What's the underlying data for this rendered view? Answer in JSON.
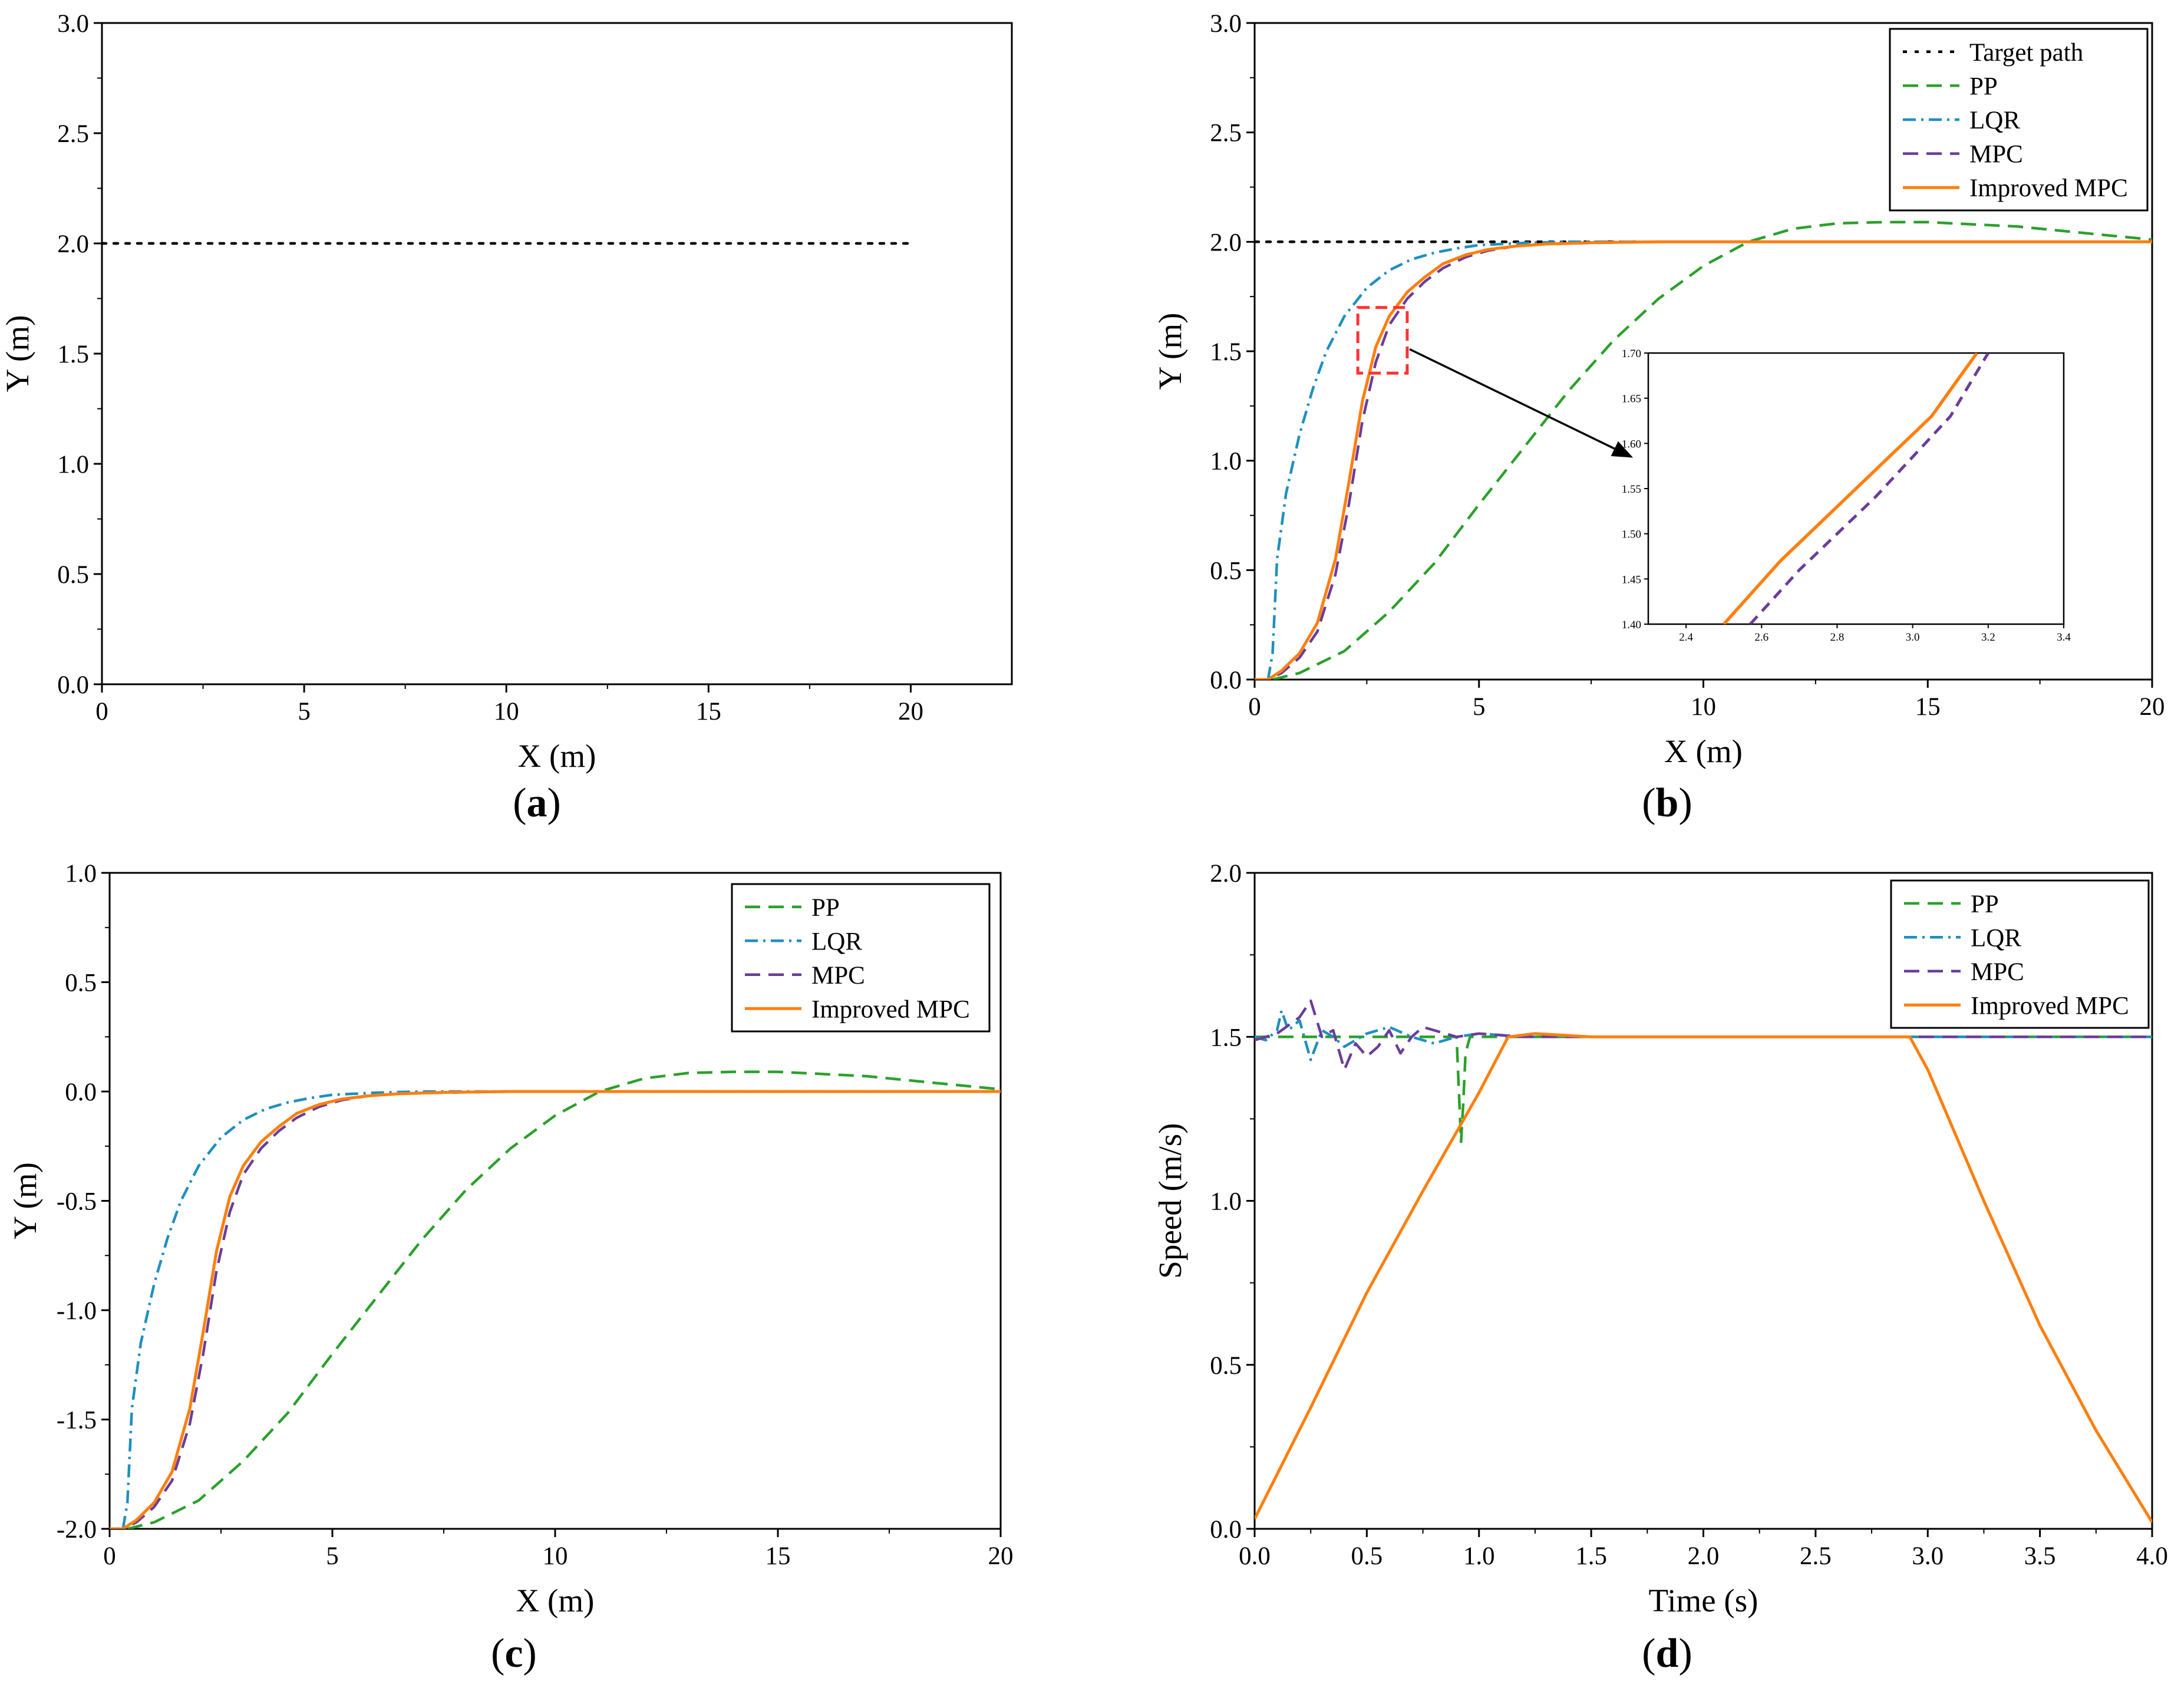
{
  "colors": {
    "target": "#000000",
    "pp": "#2ca02c",
    "lqr": "#1f8fbf",
    "mpc": "#6a3d9a",
    "improved": "#ff7f0e",
    "zoom_box": "#ff3333"
  },
  "chart_data": [
    {
      "panel": "a",
      "type": "line",
      "xlabel": "X (m)",
      "ylabel": "Y (m)",
      "xlim": [
        0,
        22.5
      ],
      "ylim": [
        0,
        3.0
      ],
      "xticks": [
        "0",
        "5",
        "10",
        "15",
        "20"
      ],
      "yticks": [
        "0.0",
        "0.5",
        "1.0",
        "1.5",
        "2.0",
        "2.5",
        "3.0"
      ],
      "series": [
        {
          "name": "Target path",
          "style": "dotted",
          "color_key": "target",
          "x": [
            0,
            20
          ],
          "y": [
            2.0,
            2.0
          ]
        }
      ],
      "caption": "a"
    },
    {
      "panel": "b",
      "type": "line",
      "xlabel": "X (m)",
      "ylabel": "Y (m)",
      "xlim": [
        0,
        20
      ],
      "ylim": [
        0,
        3.0
      ],
      "xticks": [
        "0",
        "5",
        "10",
        "15",
        "20"
      ],
      "yticks": [
        "0.0",
        "0.5",
        "1.0",
        "1.5",
        "2.0",
        "2.5",
        "3.0"
      ],
      "legend": [
        "Target path",
        "PP",
        "LQR",
        "MPC",
        "Improved MPC"
      ],
      "series": [
        {
          "name": "Target path",
          "style": "dotted",
          "color_key": "target",
          "x": [
            0,
            20
          ],
          "y": [
            2.0,
            2.0
          ]
        },
        {
          "name": "PP",
          "style": "dashed",
          "color_key": "pp",
          "x": [
            0.4,
            1,
            2,
            3,
            4,
            5,
            6,
            7,
            8,
            9,
            10,
            11,
            12,
            13,
            14,
            15,
            16,
            17,
            18,
            19,
            20
          ],
          "y": [
            0.0,
            0.03,
            0.13,
            0.31,
            0.53,
            0.8,
            1.06,
            1.32,
            1.55,
            1.74,
            1.89,
            2.0,
            2.06,
            2.085,
            2.09,
            2.09,
            2.08,
            2.07,
            2.05,
            2.03,
            2.01
          ]
        },
        {
          "name": "LQR",
          "style": "dashdot",
          "color_key": "lqr",
          "x": [
            0.3,
            0.4,
            0.5,
            0.7,
            1.0,
            1.3,
            1.6,
            2.0,
            2.5,
            3.0,
            3.5,
            4.0,
            4.5,
            5.0,
            6.0,
            7.0,
            20.0
          ],
          "y": [
            0.0,
            0.12,
            0.55,
            0.85,
            1.12,
            1.33,
            1.5,
            1.66,
            1.79,
            1.87,
            1.92,
            1.95,
            1.97,
            1.985,
            1.995,
            2.0,
            2.0
          ]
        },
        {
          "name": "MPC",
          "style": "dashed",
          "color_key": "mpc",
          "x": [
            0.0,
            0.3,
            0.6,
            1.0,
            1.4,
            1.8,
            2.1,
            2.4,
            2.7,
            3.0,
            3.4,
            3.8,
            4.2,
            4.7,
            5.2,
            5.8,
            6.5,
            7.5,
            9.0,
            20.0
          ],
          "y": [
            0.0,
            0.0,
            0.03,
            0.1,
            0.22,
            0.48,
            0.8,
            1.18,
            1.45,
            1.62,
            1.74,
            1.82,
            1.88,
            1.93,
            1.96,
            1.98,
            1.99,
            1.995,
            2.0,
            2.0
          ]
        },
        {
          "name": "Improved MPC",
          "style": "solid",
          "color_key": "improved",
          "x": [
            0.0,
            0.3,
            0.6,
            1.0,
            1.4,
            1.8,
            2.1,
            2.4,
            2.7,
            3.0,
            3.4,
            3.8,
            4.2,
            4.7,
            5.2,
            5.8,
            6.5,
            7.5,
            9.0,
            20.0
          ],
          "y": [
            0.0,
            0.0,
            0.04,
            0.12,
            0.26,
            0.55,
            0.9,
            1.27,
            1.52,
            1.66,
            1.77,
            1.84,
            1.9,
            1.94,
            1.965,
            1.98,
            1.99,
            1.996,
            2.0,
            2.0
          ]
        }
      ],
      "inset": {
        "xlim": [
          2.3,
          3.4
        ],
        "ylim": [
          1.4,
          1.7
        ],
        "xticks": [
          "2.4",
          "2.6",
          "2.8",
          "3.0",
          "3.2",
          "3.4"
        ],
        "yticks": [
          "1.40",
          "1.45",
          "1.50",
          "1.55",
          "1.60",
          "1.65",
          "1.70"
        ],
        "series": [
          {
            "name": "MPC",
            "color_key": "mpc",
            "x": [
              2.57,
              2.7,
              2.9,
              3.1,
              3.2
            ],
            "y": [
              1.4,
              1.46,
              1.54,
              1.63,
              1.7
            ]
          },
          {
            "name": "Improved MPC",
            "color_key": "improved",
            "x": [
              2.5,
              2.65,
              2.85,
              3.05,
              3.17
            ],
            "y": [
              1.4,
              1.47,
              1.55,
              1.63,
              1.7
            ]
          }
        ],
        "source_region": {
          "x": [
            2.3,
            3.4
          ],
          "y": [
            1.4,
            1.7
          ]
        }
      },
      "caption": "b"
    },
    {
      "panel": "c",
      "type": "line",
      "xlabel": "X (m)",
      "ylabel": "Y (m)",
      "xlim": [
        0,
        20
      ],
      "ylim": [
        -2.0,
        1.0
      ],
      "xticks": [
        "0",
        "5",
        "10",
        "15",
        "20"
      ],
      "yticks": [
        "-2.0",
        "-1.5",
        "-1.0",
        "-0.5",
        "0.0",
        "0.5",
        "1.0"
      ],
      "legend": [
        "PP",
        "LQR",
        "MPC",
        "Improved MPC"
      ],
      "series": [
        {
          "name": "PP",
          "style": "dashed",
          "color_key": "pp",
          "x": [
            0.4,
            1,
            2,
            3,
            4,
            5,
            6,
            7,
            8,
            9,
            10,
            11,
            12,
            13,
            14,
            15,
            16,
            17,
            18,
            19,
            20
          ],
          "y": [
            -2.0,
            -1.97,
            -1.87,
            -1.69,
            -1.47,
            -1.2,
            -0.94,
            -0.68,
            -0.45,
            -0.26,
            -0.11,
            0.0,
            0.06,
            0.085,
            0.09,
            0.09,
            0.08,
            0.07,
            0.05,
            0.03,
            0.01
          ]
        },
        {
          "name": "LQR",
          "style": "dashdot",
          "color_key": "lqr",
          "x": [
            0.3,
            0.4,
            0.5,
            0.7,
            1.0,
            1.3,
            1.6,
            2.0,
            2.5,
            3.0,
            3.5,
            4.0,
            4.5,
            5.0,
            6.0,
            7.0,
            20.0
          ],
          "y": [
            -2.0,
            -1.88,
            -1.45,
            -1.15,
            -0.88,
            -0.67,
            -0.5,
            -0.34,
            -0.21,
            -0.13,
            -0.08,
            -0.05,
            -0.03,
            -0.015,
            -0.005,
            0.0,
            0.0
          ]
        },
        {
          "name": "MPC",
          "style": "dashed",
          "color_key": "mpc",
          "x": [
            0.0,
            0.3,
            0.6,
            1.0,
            1.4,
            1.8,
            2.1,
            2.4,
            2.7,
            3.0,
            3.4,
            3.8,
            4.2,
            4.7,
            5.2,
            5.8,
            6.5,
            7.5,
            9.0,
            20.0
          ],
          "y": [
            -2.0,
            -2.0,
            -1.97,
            -1.9,
            -1.78,
            -1.52,
            -1.2,
            -0.82,
            -0.55,
            -0.38,
            -0.26,
            -0.18,
            -0.12,
            -0.07,
            -0.04,
            -0.02,
            -0.01,
            -0.005,
            0.0,
            0.0
          ]
        },
        {
          "name": "Improved MPC",
          "style": "solid",
          "color_key": "improved",
          "x": [
            0.0,
            0.3,
            0.6,
            1.0,
            1.4,
            1.8,
            2.1,
            2.4,
            2.7,
            3.0,
            3.4,
            3.8,
            4.2,
            4.7,
            5.2,
            5.8,
            6.5,
            7.5,
            9.0,
            20.0
          ],
          "y": [
            -2.0,
            -2.0,
            -1.96,
            -1.88,
            -1.74,
            -1.45,
            -1.1,
            -0.73,
            -0.48,
            -0.34,
            -0.23,
            -0.16,
            -0.1,
            -0.06,
            -0.035,
            -0.02,
            -0.01,
            -0.004,
            0.0,
            0.0
          ]
        }
      ],
      "caption": "c"
    },
    {
      "panel": "d",
      "type": "line",
      "xlabel": "Time (s)",
      "ylabel": "Speed (m/s)",
      "xlim": [
        0,
        4.0
      ],
      "ylim": [
        0,
        2.0
      ],
      "xticks": [
        "0.0",
        "0.5",
        "1.0",
        "1.5",
        "2.0",
        "2.5",
        "3.0",
        "3.5",
        "4.0"
      ],
      "yticks": [
        "0.0",
        "0.5",
        "1.0",
        "1.5",
        "2.0"
      ],
      "legend": [
        "PP",
        "LQR",
        "MPC",
        "Improved MPC"
      ],
      "series": [
        {
          "name": "PP",
          "style": "dashed",
          "color_key": "pp",
          "x": [
            0.0,
            0.3,
            0.6,
            0.9,
            0.92,
            0.93,
            0.94,
            0.96,
            1.0,
            1.2,
            4.0
          ],
          "y": [
            1.5,
            1.5,
            1.5,
            1.5,
            1.18,
            1.3,
            1.45,
            1.5,
            1.5,
            1.5,
            1.5
          ]
        },
        {
          "name": "LQR",
          "style": "dashdot",
          "color_key": "lqr",
          "x": [
            0.0,
            0.05,
            0.1,
            0.12,
            0.15,
            0.2,
            0.25,
            0.3,
            0.35,
            0.4,
            0.5,
            0.6,
            0.7,
            0.8,
            0.9,
            1.0,
            1.2,
            4.0
          ],
          "y": [
            1.5,
            1.49,
            1.52,
            1.58,
            1.52,
            1.55,
            1.43,
            1.52,
            1.5,
            1.47,
            1.51,
            1.53,
            1.5,
            1.48,
            1.5,
            1.51,
            1.5,
            1.5
          ]
        },
        {
          "name": "MPC",
          "style": "dashed",
          "color_key": "mpc",
          "x": [
            0.0,
            0.1,
            0.2,
            0.25,
            0.3,
            0.35,
            0.4,
            0.45,
            0.5,
            0.55,
            0.6,
            0.65,
            0.7,
            0.75,
            0.8,
            0.9,
            1.0,
            1.2,
            4.0
          ],
          "y": [
            1.49,
            1.51,
            1.56,
            1.61,
            1.5,
            1.52,
            1.4,
            1.48,
            1.44,
            1.47,
            1.52,
            1.45,
            1.5,
            1.53,
            1.52,
            1.5,
            1.51,
            1.5,
            1.5
          ]
        },
        {
          "name": "Improved MPC",
          "style": "solid",
          "color_key": "improved",
          "x": [
            0.0,
            0.25,
            0.5,
            0.75,
            1.0,
            1.13,
            1.25,
            1.5,
            2.0,
            2.5,
            2.92,
            3.0,
            3.25,
            3.5,
            3.75,
            4.0
          ],
          "y": [
            0.03,
            0.37,
            0.72,
            1.03,
            1.33,
            1.5,
            1.51,
            1.5,
            1.5,
            1.5,
            1.5,
            1.4,
            1.0,
            0.62,
            0.3,
            0.02
          ]
        }
      ],
      "caption": "d"
    }
  ]
}
